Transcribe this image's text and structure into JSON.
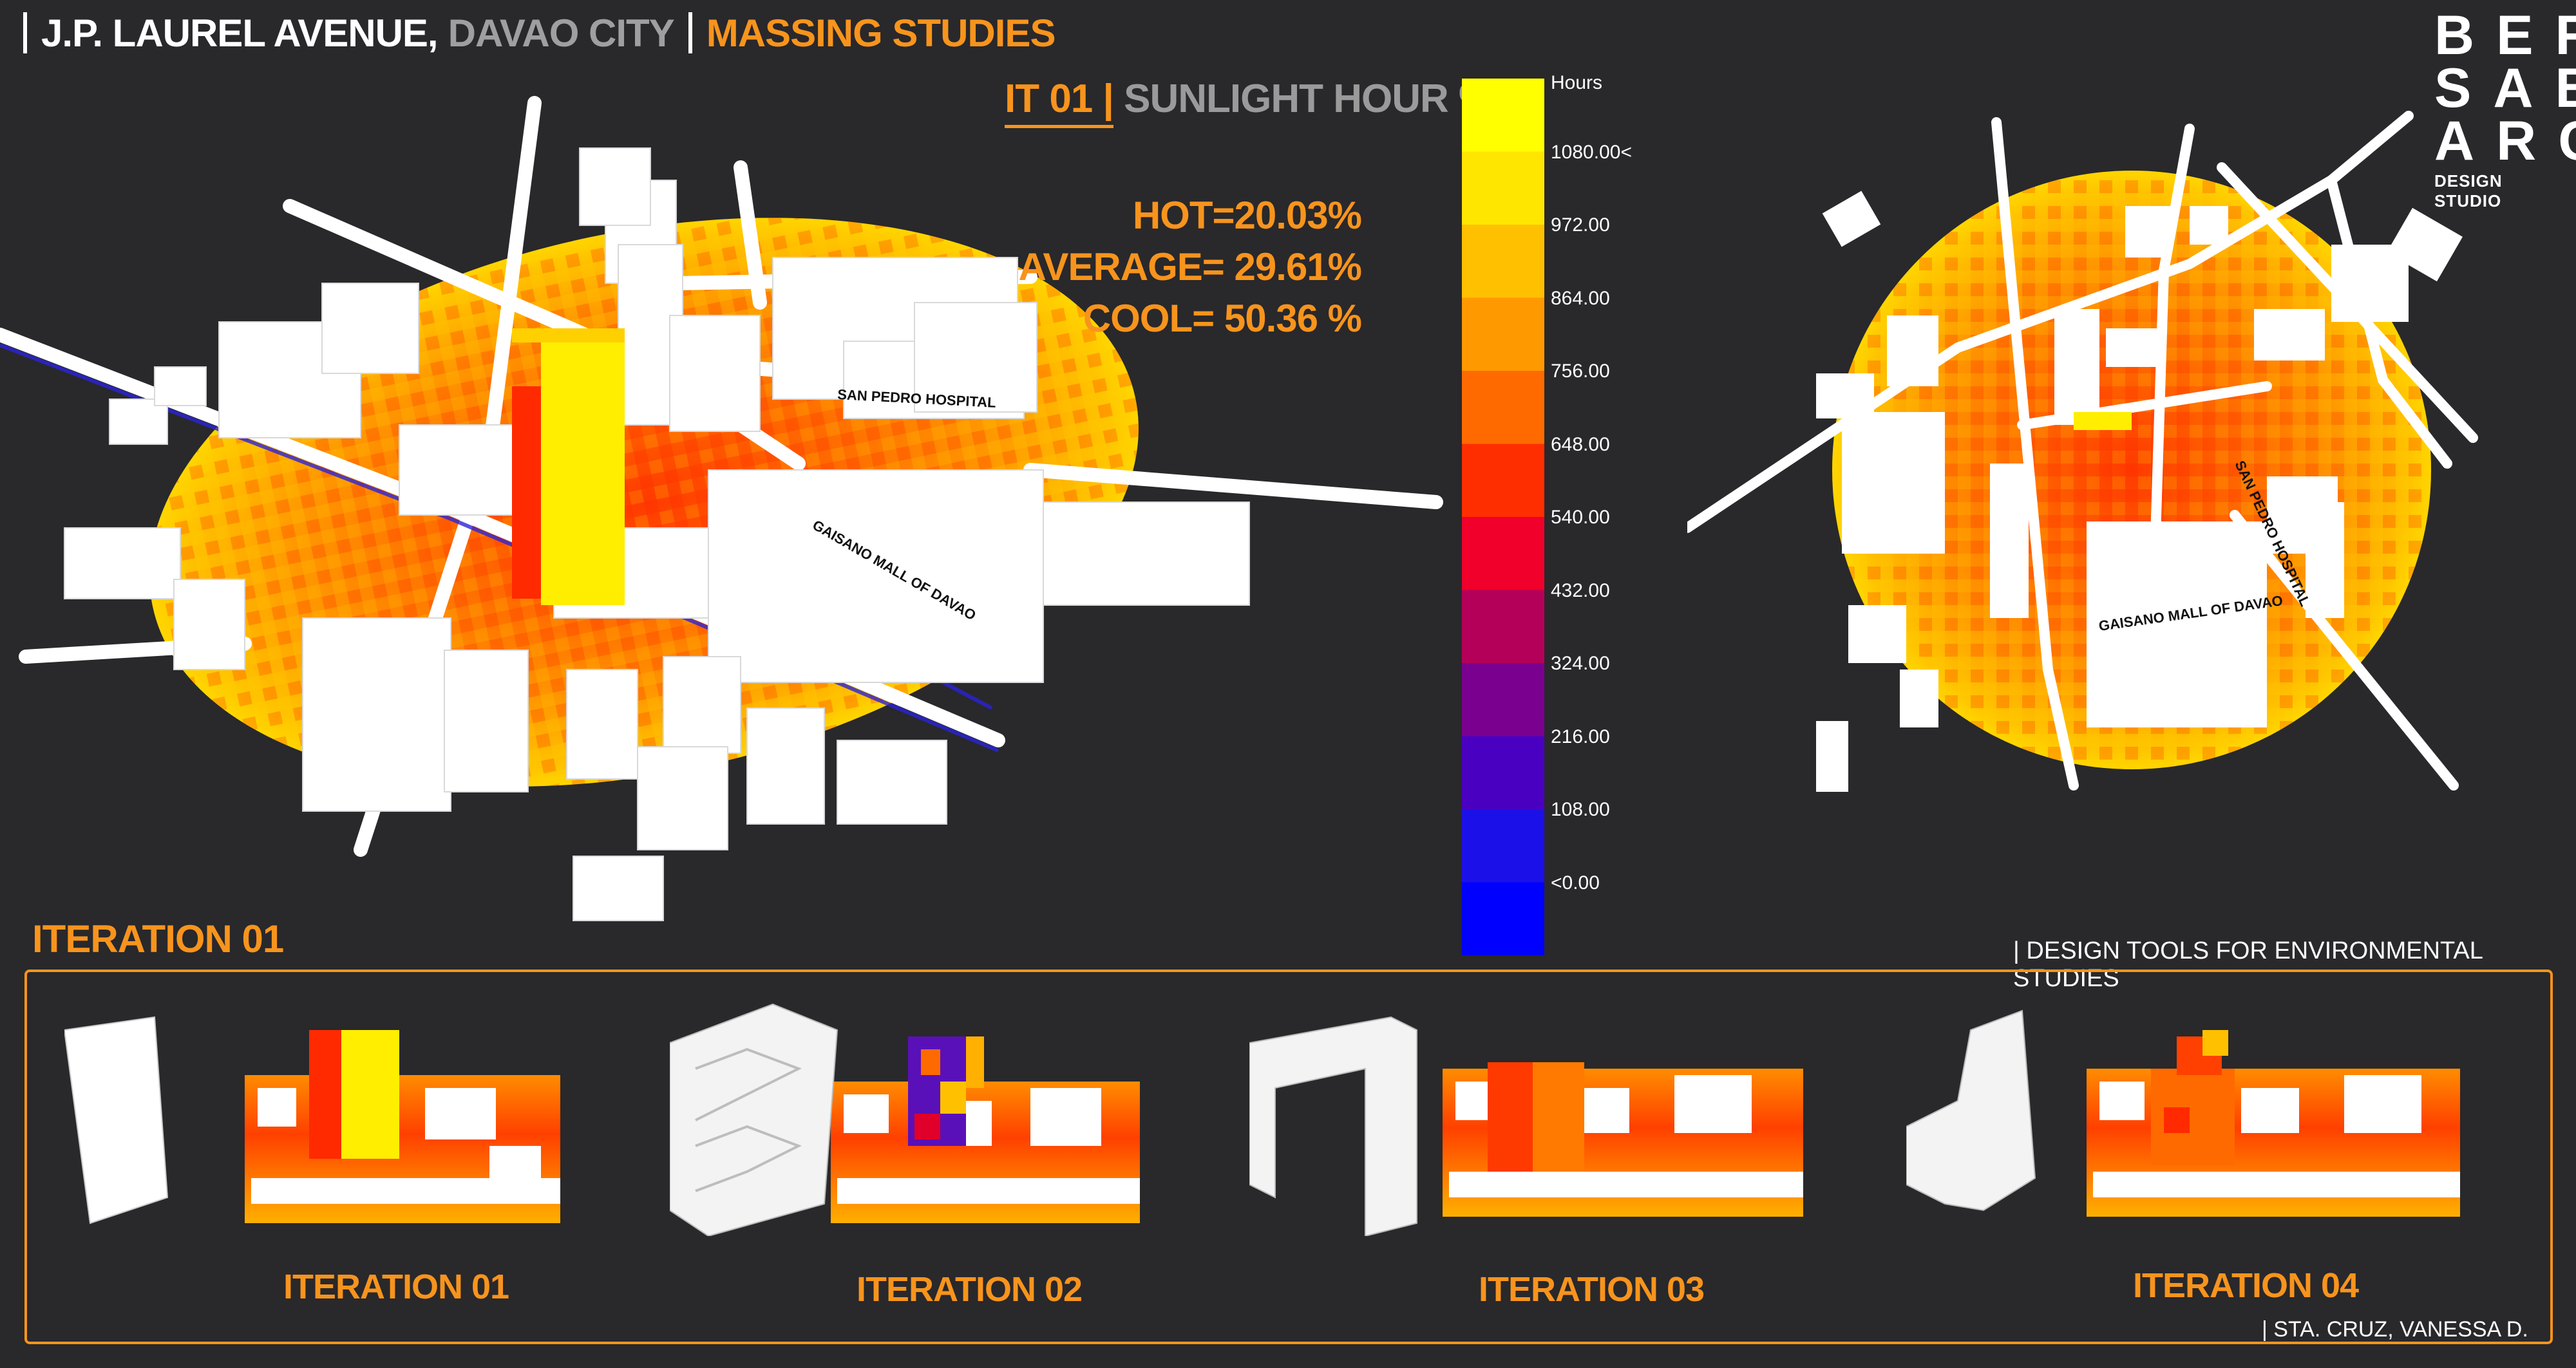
{
  "header": {
    "street": "J.P. LAUREL AVENUE,",
    "city": "DAVAO CITY",
    "section": "MASSING STUDIES"
  },
  "logo": {
    "rows": [
      "BER",
      "SAB",
      "ARC"
    ],
    "subtitle": "DESIGN STUDIO"
  },
  "analysis": {
    "iteration_code": "IT 01",
    "metric": "SUNLIGHT HOUR %",
    "stats": [
      {
        "label": "HOT=20.03%"
      },
      {
        "label": "AVERAGE= 29.61%"
      },
      {
        "label": "COOL= 50.36 %"
      }
    ]
  },
  "map_labels": {
    "hospital": "SAN PEDRO HOSPITAL",
    "mall": "GAISANO MALL OF DAVAO"
  },
  "legend": {
    "title": "Hours",
    "labels": [
      "1080.00<",
      "972.00",
      "864.00",
      "756.00",
      "648.00",
      "540.00",
      "432.00",
      "324.00",
      "216.00",
      "108.00",
      "<0.00"
    ],
    "colors": [
      "#ffff00",
      "#ffe600",
      "#ffc000",
      "#ff9900",
      "#ff6a00",
      "#ff2e00",
      "#f0002a",
      "#b5005a",
      "#7a0090",
      "#4a00c0",
      "#1c10e8",
      "#0000ff"
    ]
  },
  "iteration_heading": "ITERATION 01",
  "tools_label": "| DESIGN TOOLS FOR ENVIRONMENTAL STUDIES",
  "iterations": [
    {
      "label": "ITERATION 01"
    },
    {
      "label": "ITERATION 02"
    },
    {
      "label": "ITERATION 03"
    },
    {
      "label": "ITERATION 04"
    }
  ],
  "author": "| STA. CRUZ, VANESSA D."
}
